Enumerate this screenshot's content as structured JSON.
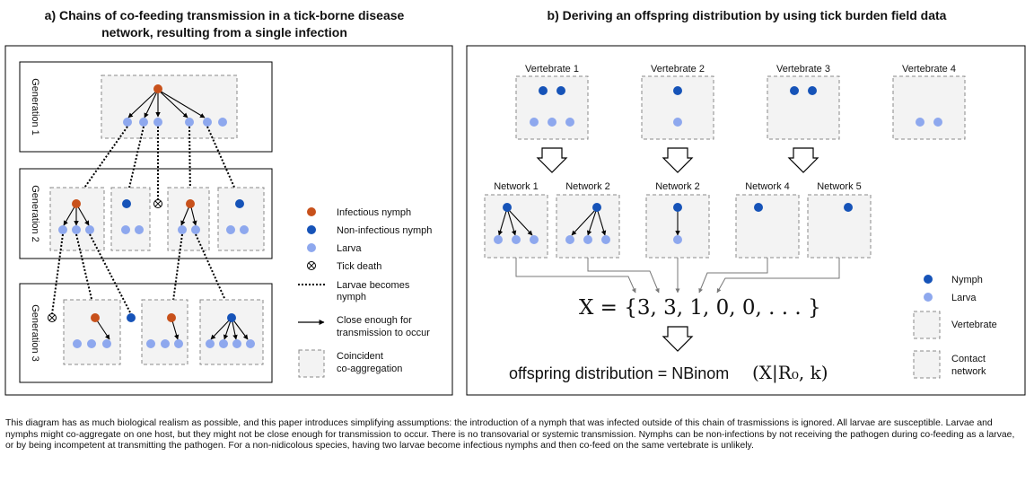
{
  "panel_a": {
    "title_line1": "a) Chains of co-feeding transmission in a tick-borne disease",
    "title_line2": "network, resulting from a single infection",
    "generations": [
      "Generation 1",
      "Generation 2",
      "Generation 3"
    ],
    "legend": {
      "infectious_nymph": "Infectious nymph",
      "non_infectious_nymph": "Non-infectious nymph",
      "larva": "Larva",
      "tick_death": "Tick death",
      "larvae_become_line1": "Larvae becomes",
      "larvae_become_line2": "nymph",
      "close_line1": "Close enough for",
      "close_line2": "transmission to occur",
      "coincident_line1": "Coincident",
      "coincident_line2": "co-aggregation"
    }
  },
  "panel_b": {
    "title": "b) Deriving an offspring distribution by using tick burden field data",
    "vertebrates": [
      "Vertebrate 1",
      "Vertebrate 2",
      "Vertebrate 3",
      "Vertebrate 4"
    ],
    "networks": [
      "Network 1",
      "Network 2",
      "Network 2",
      "Network 4",
      "Network 5"
    ],
    "equation": "X = {3, 3, 1, 0, 0, . . . }",
    "offspring_label": "offspring distribution = NBinom",
    "offspring_args": "(X|R₀, k)",
    "legend": {
      "nymph": "Nymph",
      "larva": "Larva",
      "vertebrate": "Vertebrate",
      "contact_line1": "Contact",
      "contact_line2": "network"
    }
  },
  "caption": "This diagram has as much biological realism as possible, and this paper introduces simplifying assumptions: the introduction of a nymph that was infected outside of this chain of trasmissions is ignored. All larvae are susceptible. Larvae and nymphs might co-aggregate on one host, but they might not be close enough for transmission to occur. There is no transovarial or systemic transmission. Nymphs can be non-infections by not receiving the pathogen during co-feeding as a larvae, or by being incompetent at transmitting the pathogen. For a non-nidicolous species, having two larvae become infectious nymphs and then co-feed on the same vertebrate is unlikely.",
  "colors": {
    "infectious": "#c8511b",
    "non_infectious": "#1653b8",
    "larva": "#8ea8ee",
    "box_fill": "#f3f3f3"
  }
}
